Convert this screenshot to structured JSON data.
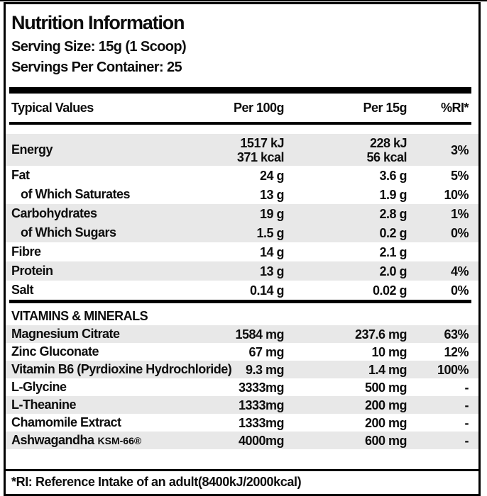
{
  "label": {
    "title": "Nutrition Information",
    "serving_size": "Serving Size: 15g (1 Scoop)",
    "servings_per_container": "Servings Per Container: 25",
    "footnote": "*RI: Reference Intake of an adult(8400kJ/2000kcal)"
  },
  "table": {
    "headers": {
      "col1": "Typical Values",
      "col2": "Per 100g",
      "col3": "Per 15g",
      "col4": "%RI*"
    },
    "rows": [
      {
        "label": "Energy",
        "per_100g": "1517 kJ\n371 kcal",
        "per_15g": "228 kJ\n56 kcal",
        "ri": "3%"
      },
      {
        "label": "Fat",
        "per_100g": "24 g",
        "per_15g": "3.6 g",
        "ri": "5%"
      },
      {
        "label": "of Which Saturates",
        "per_100g": "13 g",
        "per_15g": "1.9 g",
        "ri": "10%"
      },
      {
        "label": "Carbohydrates",
        "per_100g": "19 g",
        "per_15g": "2.8 g",
        "ri": "1%"
      },
      {
        "label": "of Which Sugars",
        "per_100g": "1.5 g",
        "per_15g": "0.2 g",
        "ri": "0%"
      },
      {
        "label": "Fibre",
        "per_100g": "14 g",
        "per_15g": "2.1 g",
        "ri": ""
      },
      {
        "label": "Protein",
        "per_100g": "13 g",
        "per_15g": "2.0 g",
        "ri": "4%"
      },
      {
        "label": "Salt",
        "per_100g": "0.14 g",
        "per_15g": "0.02 g",
        "ri": "0%"
      }
    ],
    "section_header": "VITAMINS & MINERALS",
    "vitamin_rows": [
      {
        "label": "Magnesium Citrate",
        "per_100g": "1584 mg",
        "per_15g": "237.6 mg",
        "ri": "63%"
      },
      {
        "label": "Zinc Gluconate",
        "per_100g": "67 mg",
        "per_15g": "10 mg",
        "ri": "12%"
      },
      {
        "label": "Vitamin B6 (Pyrdioxine Hydrochloride)",
        "per_100g": "9.3 mg",
        "per_15g": "1.4 mg",
        "ri": "100%"
      },
      {
        "label": "L-Glycine",
        "per_100g": "3333mg",
        "per_15g": "500 mg",
        "ri": "-"
      },
      {
        "label": "L-Theanine",
        "per_100g": "1333mg",
        "per_15g": "200 mg",
        "ri": "-"
      },
      {
        "label": "Chamomile Extract",
        "per_100g": "1333mg",
        "per_15g": "200 mg",
        "ri": "-"
      },
      {
        "label": "Ashwagandha",
        "label_suffix": "KSM-66®",
        "per_100g": "4000mg",
        "per_15g": "600 mg",
        "ri": "-"
      }
    ]
  },
  "colors": {
    "row_shade": "#e8e8e8",
    "text": "#0d0d0d",
    "border": "#000000"
  }
}
